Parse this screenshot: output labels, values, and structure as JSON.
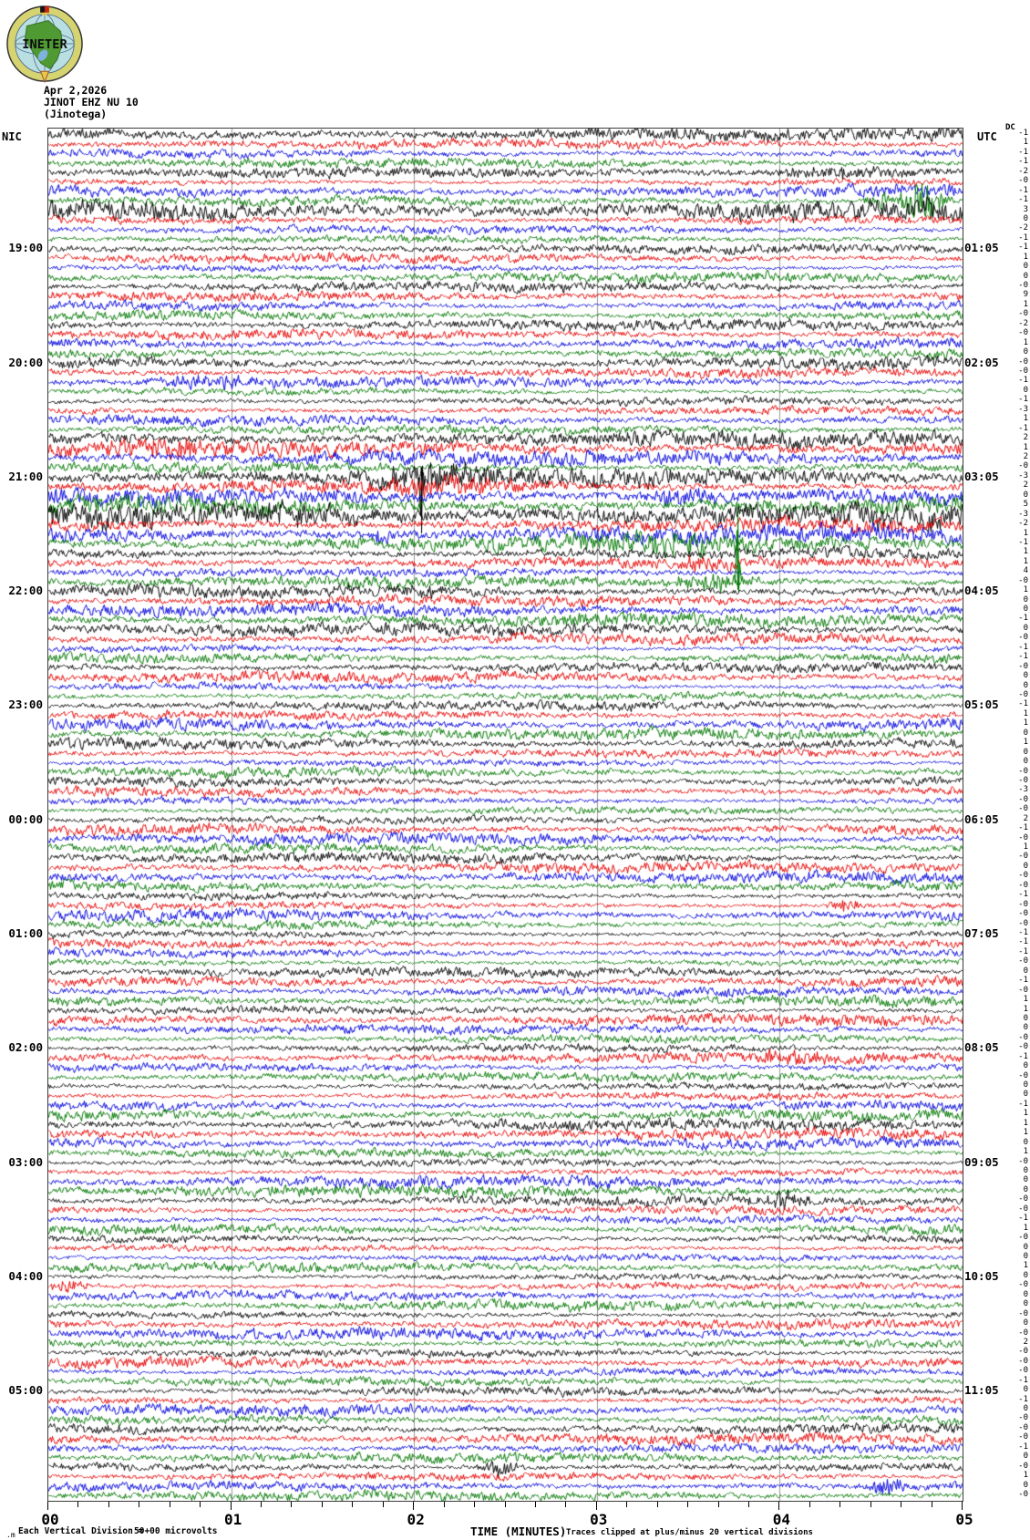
{
  "logo": {
    "text": "INETER"
  },
  "header": {
    "date": "Apr 2,2026",
    "station": "JINOT EHZ NU 10",
    "location": "(Jinotega)"
  },
  "axes": {
    "left_label": "NIC",
    "right_label": "UTC",
    "dc_label": "DC",
    "left_times": [
      "19:00",
      "20:00",
      "21:00",
      "22:00",
      "23:00",
      "00:00",
      "01:00",
      "02:00",
      "03:00",
      "04:00",
      "05:00"
    ],
    "right_times": [
      "01:05",
      "02:05",
      "03:05",
      "04:05",
      "05:05",
      "06:05",
      "07:05",
      "08:05",
      "09:05",
      "10:05",
      "11:05"
    ],
    "x_ticks": [
      "00",
      "01",
      "02",
      "03",
      "04",
      "05"
    ],
    "x_title": "TIME (MINUTES)"
  },
  "footer": {
    "prefix": ".m",
    "scale_text": "Each Vertical Division =",
    "scale_value": "50+00 microvolts",
    "clip_note": "Traces clipped at plus/minus 20 vertical divisions"
  },
  "chart_data": {
    "type": "helicorder",
    "station": "JINOT EHZ NU 10",
    "rows": 144,
    "minutes_per_row": 5,
    "start_time_local": "18:00",
    "end_time_local": "06:00",
    "x_range_minutes": [
      0,
      5
    ],
    "clip_divisions": 20,
    "microvolts_per_division": 50,
    "row_colors_cycle": [
      "#000000",
      "#e60000",
      "#0000dd",
      "#007700"
    ],
    "grid_color": "#999999",
    "dc_offsets": [
      "-1",
      "1",
      "-1",
      "-1",
      "-2",
      "-0",
      "-1",
      "-1",
      "3",
      "0",
      "-2",
      "-1",
      "-1",
      "1",
      "0",
      "0",
      "-0",
      "9",
      "1",
      "-0",
      "-2",
      "-0",
      "1",
      "0",
      "-0",
      "-0",
      "-1",
      "0",
      "-1",
      "-3",
      "1",
      "-1",
      "2",
      "1",
      "2",
      "-0",
      "-3",
      "2",
      "0",
      "5",
      "-3",
      "-2",
      "1",
      "-1",
      "1",
      "1",
      "4",
      "-0",
      "1",
      "0",
      "0",
      "-1",
      "0",
      "-0",
      "-1",
      "-1",
      "-0",
      "0",
      "0",
      "-0",
      "-1",
      "1",
      "1",
      "0",
      "1",
      "0",
      "0",
      "-0",
      "-0",
      "-3",
      "-0",
      "-0",
      "2",
      "-1",
      "-0",
      "1",
      "-0",
      "0",
      "-0",
      "-0",
      "-1",
      "-0",
      "-0",
      "-0",
      "-1",
      "-1",
      "-1",
      "-0",
      "0",
      "-1",
      "-0",
      "1",
      "1",
      "0",
      "0",
      "-0",
      "-0",
      "-1",
      "0",
      "-0",
      "0",
      "0",
      "-1",
      "1",
      "1",
      "1",
      "0",
      "1",
      "-0",
      "0",
      "0",
      "0",
      "-0",
      "-0",
      "-1",
      "1",
      "-0",
      "0",
      "0",
      "1",
      "0",
      "-0",
      "0",
      "0",
      "-0",
      "0",
      "-0",
      "2",
      "-0",
      "-0",
      "-0",
      "-1",
      "0",
      "-1",
      "0",
      "-0",
      "-0",
      "-0",
      "-1",
      "0",
      "-0",
      "1",
      "0",
      "-0"
    ],
    "events": [
      {
        "row": 4,
        "type": "burst",
        "minute": 4.35,
        "amp": 5,
        "width": 0.5
      },
      {
        "row": 7,
        "type": "burst",
        "minute": 4.78,
        "amp": 26,
        "width": 0.1
      },
      {
        "row": 7,
        "type": "burst",
        "minute": 4.55,
        "amp": 8,
        "width": 0.07
      },
      {
        "row": 26,
        "type": "burst",
        "minute": 0.85,
        "amp": 6,
        "width": 0.25
      },
      {
        "row": 33,
        "type": "burst",
        "minute": 0.6,
        "amp": 8,
        "width": 0.3
      },
      {
        "row": 36,
        "type": "burst",
        "minute": 2.1,
        "amp": 11,
        "width": 0.3
      },
      {
        "row": 36,
        "type": "spike",
        "minute": 2.04,
        "amp": -62,
        "width": 0.03
      },
      {
        "row": 37,
        "type": "burst",
        "minute": 2.2,
        "amp": 9,
        "width": 0.35
      },
      {
        "row": 38,
        "type": "burst",
        "minute": 3.45,
        "amp": 8,
        "width": 0.2
      },
      {
        "row": 40,
        "type": "burst",
        "minute": 1.45,
        "amp": 8,
        "width": 0.3
      },
      {
        "row": 42,
        "type": "burst",
        "minute": 1.82,
        "amp": 9,
        "width": 0.06
      },
      {
        "row": 43,
        "type": "burst",
        "minute": 3.3,
        "amp": 9,
        "width": 0.4
      },
      {
        "row": 45,
        "type": "burst",
        "minute": 3.6,
        "amp": 6,
        "width": 0.2
      },
      {
        "row": 47,
        "type": "burst",
        "minute": 3.65,
        "amp": 8,
        "width": 0.25
      },
      {
        "row": 47,
        "type": "spike",
        "minute": 3.77,
        "amp": 80,
        "width": 0.03
      },
      {
        "row": 48,
        "type": "burst",
        "minute": 2.02,
        "amp": 7,
        "width": 0.1
      },
      {
        "row": 81,
        "type": "burst",
        "minute": 4.35,
        "amp": 7,
        "width": 0.08
      },
      {
        "row": 97,
        "type": "burst",
        "minute": 4.1,
        "amp": 7,
        "width": 0.2
      },
      {
        "row": 112,
        "type": "burst",
        "minute": 4.0,
        "amp": 8,
        "width": 0.12
      },
      {
        "row": 121,
        "type": "burst",
        "minute": 0.12,
        "amp": 7,
        "width": 0.1
      },
      {
        "row": 140,
        "type": "burst",
        "minute": 2.47,
        "amp": 8,
        "width": 0.1
      },
      {
        "row": 142,
        "type": "burst",
        "minute": 4.6,
        "amp": 8,
        "width": 0.1
      }
    ],
    "noisy_rows": {
      "0": 1.25,
      "4": 1.3,
      "8": 1.7,
      "17": 1.35,
      "32": 1.5,
      "33": 1.7,
      "34": 1.4,
      "35": 1.5,
      "36": 2.2,
      "37": 1.9,
      "38": 1.6,
      "39": 1.5,
      "40": 2.1,
      "41": 1.8,
      "42": 1.5,
      "43": 1.6,
      "44": 1.35,
      "45": 1.3,
      "46": 1.3,
      "47": 1.4,
      "48": 1.35,
      "49": 1.25,
      "50": 1.2,
      "51": 1.2,
      "52": 1.15,
      "53": 1.15
    }
  }
}
